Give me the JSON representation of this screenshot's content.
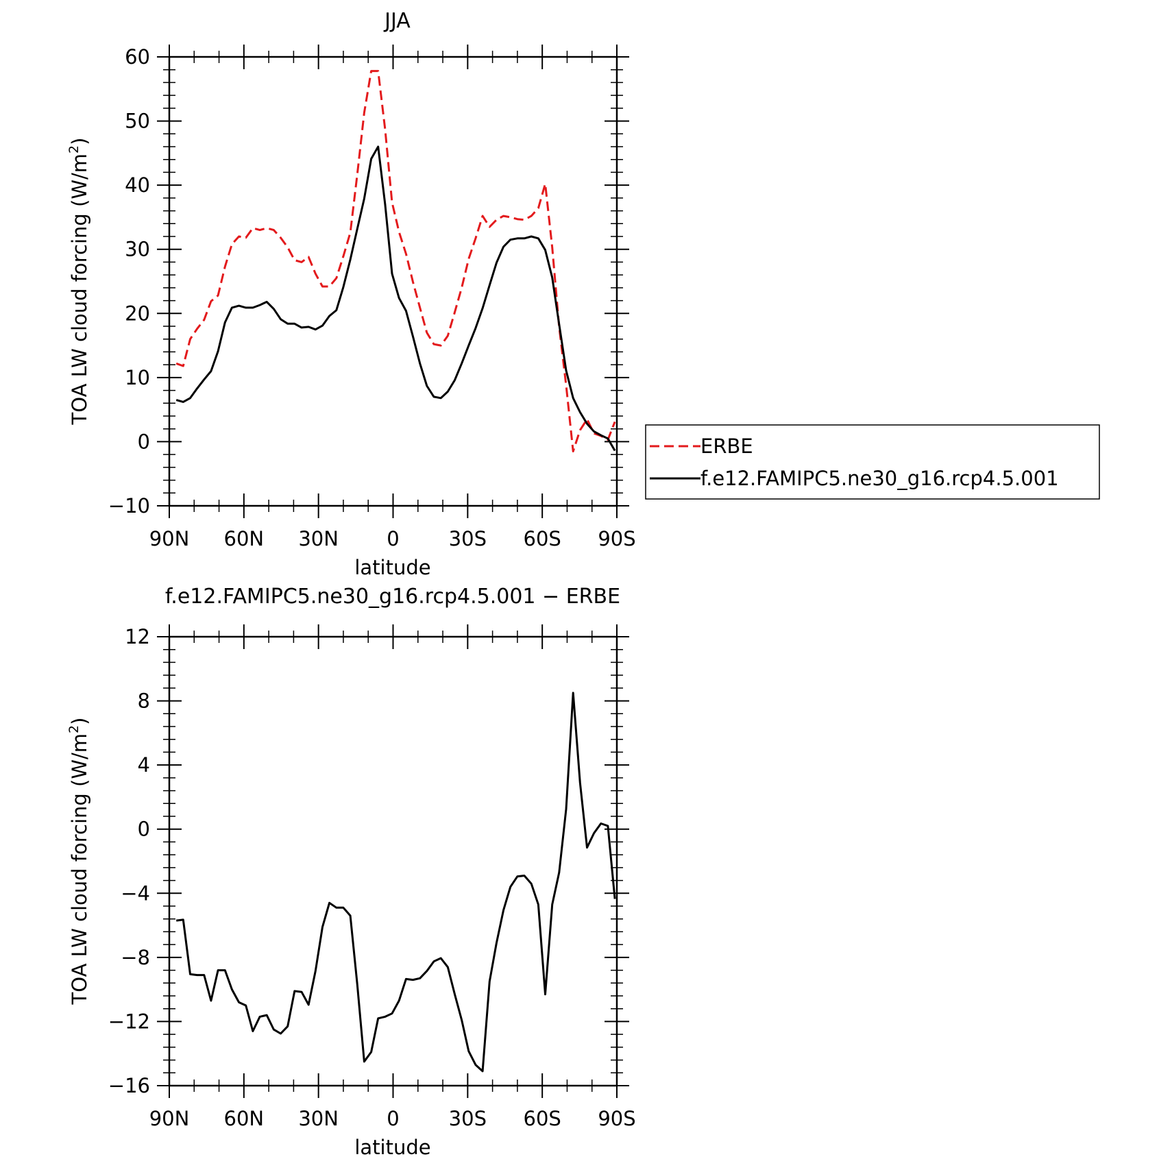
{
  "chart_data": [
    {
      "type": "line",
      "title": "JJA",
      "xlabel": "latitude",
      "ylabel": "TOA LW cloud forcing (W/m²)",
      "ylabel_main": "TOA LW cloud forcing (W/m",
      "ylabel_sup": "2",
      "ylabel_close": ")",
      "xlim": [
        -90,
        90
      ],
      "ylim": [
        -10,
        60
      ],
      "xticks": [
        {
          "value": -90,
          "label": "90N"
        },
        {
          "value": -60,
          "label": "60N"
        },
        {
          "value": -30,
          "label": "30N"
        },
        {
          "value": 0,
          "label": "0"
        },
        {
          "value": 30,
          "label": "30S"
        },
        {
          "value": 60,
          "label": "60S"
        },
        {
          "value": 90,
          "label": "90S"
        }
      ],
      "yticks": [
        -10,
        0,
        10,
        20,
        30,
        40,
        50,
        60
      ],
      "legend_position": "right",
      "series": [
        {
          "name": "ERBE",
          "color": "#e31a1c",
          "dash": "dashed",
          "x": [
            -87.2,
            -84.4,
            -81.6,
            -78.8,
            -76,
            -73.2,
            -70.4,
            -67.6,
            -64.8,
            -62,
            -59.2,
            -56.4,
            -53.6,
            -50.8,
            -48,
            -45.2,
            -42.4,
            -39.6,
            -36.8,
            -34,
            -31.2,
            -28.4,
            -25.6,
            -22.8,
            -20,
            -17.2,
            -14.4,
            -11.6,
            -8.8,
            -6,
            -3.2,
            -0.4,
            2.4,
            5.2,
            8,
            10.8,
            13.6,
            16.4,
            19.2,
            22,
            24.8,
            27.6,
            30.4,
            33.2,
            36,
            38.8,
            41.6,
            44.4,
            47.2,
            50,
            52.8,
            55.6,
            58.4,
            61.2,
            64,
            66.8,
            69.6,
            72.4,
            75.2,
            78,
            80.8,
            83.6,
            86.4,
            89.2
          ],
          "y": [
            12.2,
            11.8,
            16,
            17.6,
            19,
            21.9,
            22.8,
            27.3,
            30.8,
            32,
            31.8,
            33.3,
            33,
            33.3,
            33,
            31.8,
            30.3,
            28.3,
            28,
            28.8,
            26.2,
            24.2,
            24.2,
            25.5,
            28.9,
            32.6,
            41.7,
            51.3,
            57.8,
            57.8,
            48.7,
            37.3,
            32.7,
            29.3,
            24.9,
            20.9,
            17,
            15.2,
            15,
            16.5,
            20.2,
            24,
            28.5,
            31.7,
            35.2,
            33.5,
            34.6,
            35.2,
            35,
            34.7,
            34.6,
            35.2,
            36.4,
            40.2,
            30.3,
            17.9,
            8.8,
            -1.5,
            1.8,
            3.5,
            1.3,
            0.9,
            0.3,
            3.1
          ]
        },
        {
          "name": "f.e12.FAMIPC5.ne30_g16.rcp4.5.001",
          "color": "#000000",
          "dash": "solid",
          "x": [
            -87.2,
            -84.4,
            -81.6,
            -78.8,
            -76,
            -73.2,
            -70.4,
            -67.6,
            -64.8,
            -62,
            -59.2,
            -56.4,
            -53.6,
            -50.8,
            -48,
            -45.2,
            -42.4,
            -39.6,
            -36.8,
            -34,
            -31.2,
            -28.4,
            -25.6,
            -22.8,
            -20,
            -17.2,
            -14.4,
            -11.6,
            -8.8,
            -6,
            -3.2,
            -0.4,
            2.4,
            5.2,
            8,
            10.8,
            13.6,
            16.4,
            19.2,
            22,
            24.8,
            27.6,
            30.4,
            33.2,
            36,
            38.8,
            41.6,
            44.4,
            47.2,
            50,
            52.8,
            55.6,
            58.4,
            61.2,
            64,
            66.8,
            69.6,
            72.4,
            75.2,
            78,
            80.8,
            83.6,
            86.4,
            89.2
          ],
          "y": [
            6.5,
            6.2,
            6.8,
            8.3,
            9.7,
            11,
            14.1,
            18.6,
            20.9,
            21.2,
            20.9,
            20.9,
            21.3,
            21.8,
            20.7,
            19.1,
            18.4,
            18.4,
            17.8,
            17.9,
            17.5,
            18.1,
            19.6,
            20.5,
            24.1,
            28.4,
            33.2,
            37.9,
            44.1,
            46,
            37,
            26.2,
            22.4,
            20.4,
            16.4,
            12.2,
            8.7,
            7,
            6.8,
            7.8,
            9.6,
            12.2,
            15,
            17.7,
            20.8,
            24.4,
            27.9,
            30.4,
            31.5,
            31.7,
            31.7,
            32,
            31.7,
            29.9,
            25.6,
            18.3,
            11.1,
            6.8,
            4.6,
            2.8,
            1.6,
            1,
            0.5,
            -1.4
          ]
        }
      ]
    },
    {
      "type": "line",
      "title": "f.e12.FAMIPC5.ne30_g16.rcp4.5.001 − ERBE",
      "xlabel": "latitude",
      "ylabel": "TOA LW cloud forcing (W/m²)",
      "ylabel_main": "TOA LW cloud forcing (W/m",
      "ylabel_sup": "2",
      "ylabel_close": ")",
      "xlim": [
        -90,
        90
      ],
      "ylim": [
        -16,
        12
      ],
      "xticks": [
        {
          "value": -90,
          "label": "90N"
        },
        {
          "value": -60,
          "label": "60N"
        },
        {
          "value": -30,
          "label": "30N"
        },
        {
          "value": 0,
          "label": "0"
        },
        {
          "value": 30,
          "label": "30S"
        },
        {
          "value": 60,
          "label": "60S"
        },
        {
          "value": 90,
          "label": "90S"
        }
      ],
      "yticks": [
        -16,
        -12,
        -8,
        -4,
        0,
        4,
        8,
        12
      ],
      "series": [
        {
          "color": "#000000",
          "dash": "solid",
          "x": [
            -87.2,
            -84.4,
            -81.6,
            -78.8,
            -76,
            -73.2,
            -70.4,
            -67.6,
            -64.8,
            -62,
            -59.2,
            -56.4,
            -53.6,
            -50.8,
            -48,
            -45.2,
            -42.4,
            -39.6,
            -36.8,
            -34,
            -31.2,
            -28.4,
            -25.6,
            -22.8,
            -20,
            -17.2,
            -14.4,
            -11.6,
            -8.8,
            -6,
            -3.2,
            -0.4,
            2.4,
            5.2,
            8,
            10.8,
            13.6,
            16.4,
            19.2,
            22,
            24.8,
            27.6,
            30.4,
            33.2,
            36,
            38.8,
            41.6,
            44.4,
            47.2,
            50,
            52.8,
            55.6,
            58.4,
            61.2,
            64,
            66.8,
            69.6,
            72.4,
            75.2,
            78,
            80.8,
            83.6,
            86.4,
            89.2
          ],
          "y": [
            -5.7,
            -5.65,
            -9.05,
            -9.1,
            -9.1,
            -10.7,
            -8.8,
            -8.8,
            -10,
            -10.8,
            -11,
            -12.6,
            -11.7,
            -11.6,
            -12.5,
            -12.75,
            -12.3,
            -10.1,
            -10.15,
            -10.95,
            -8.85,
            -6.1,
            -4.6,
            -4.9,
            -4.9,
            -5.4,
            -9.7,
            -14.5,
            -13.9,
            -11.8,
            -11.7,
            -11.5,
            -10.7,
            -9.35,
            -9.4,
            -9.3,
            -8.85,
            -8.25,
            -8.05,
            -8.6,
            -10.3,
            -11.9,
            -13.85,
            -14.7,
            -15.1,
            -9.5,
            -7.1,
            -5.05,
            -3.6,
            -2.95,
            -2.9,
            -3.4,
            -4.7,
            -10.3,
            -4.7,
            -2.7,
            1.25,
            8.5,
            2.9,
            -1.15,
            -0.25,
            0.35,
            0.2,
            -4.35
          ]
        }
      ]
    }
  ]
}
